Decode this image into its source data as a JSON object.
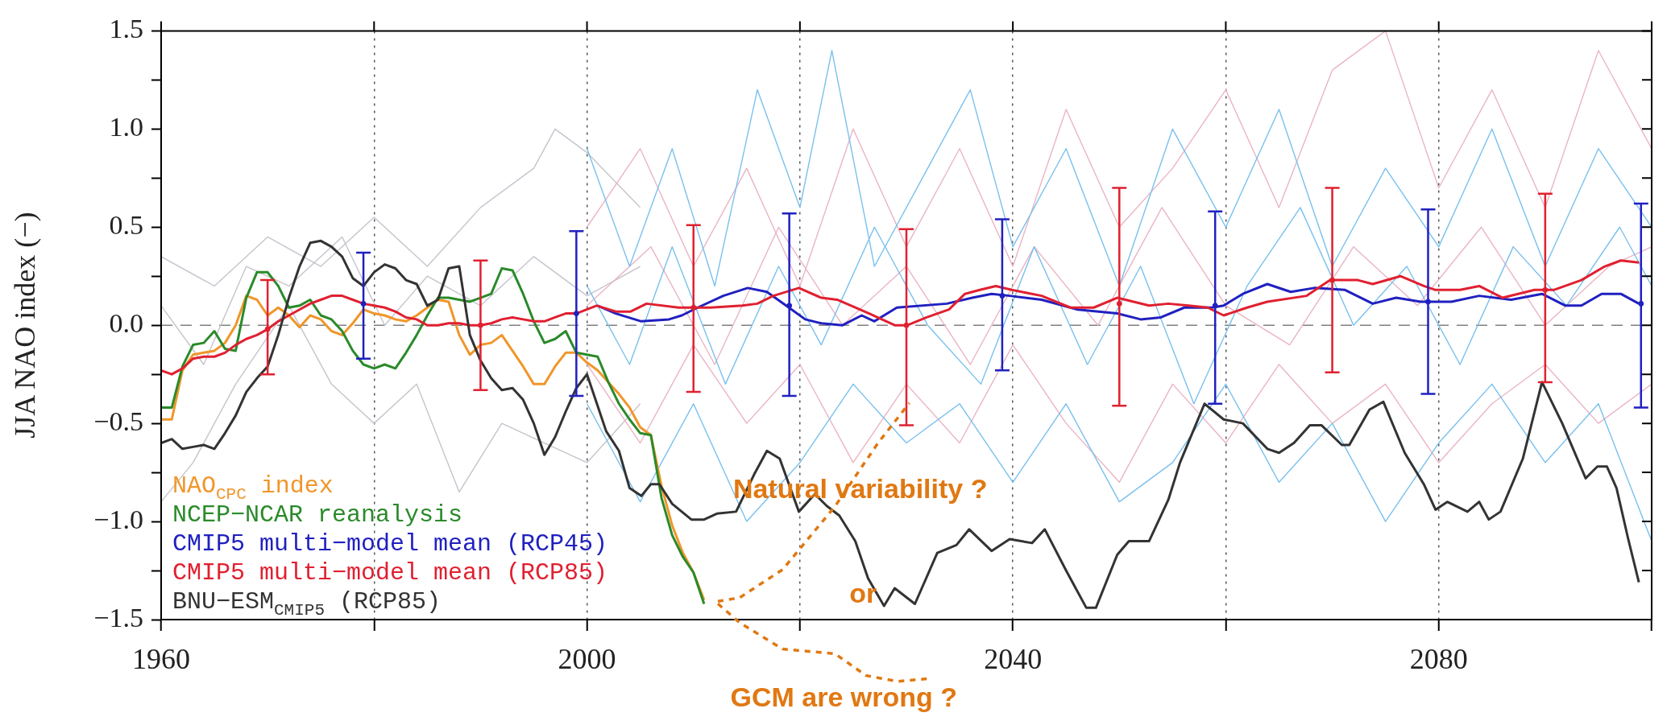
{
  "chart_data": {
    "type": "line",
    "ylabel": "JJA NAO index (−)",
    "xlim": [
      1960,
      2100
    ],
    "ylim": [
      -1.5,
      1.5
    ],
    "xticks": [
      1960,
      {
        "value": 1980,
        "label": null
      },
      2000,
      {
        "value": 2020,
        "label": null
      },
      2040,
      {
        "value": 2060,
        "label": null
      },
      2080,
      {
        "value": 2100,
        "label": null
      }
    ],
    "yticks": [
      {
        "value": -1.5,
        "label": "−1.5"
      },
      {
        "value": -1.25,
        "label": null
      },
      {
        "value": -1,
        "label": "−1.0"
      },
      {
        "value": -0.75,
        "label": null
      },
      {
        "value": -0.5,
        "label": "−0.5"
      },
      {
        "value": -0.25,
        "label": null
      },
      {
        "value": 0,
        "label": "0.0"
      },
      {
        "value": 0.25,
        "label": null
      },
      {
        "value": 0.5,
        "label": "0.5"
      },
      {
        "value": 0.75,
        "label": null
      },
      {
        "value": 1,
        "label": "1.0"
      },
      {
        "value": 1.25,
        "label": null
      },
      1.5
    ],
    "grid": "x",
    "legend": "bottom left",
    "marker": "none",
    "line_style": "solid",
    "ref_lines": [
      {
        "axis": "y",
        "value": 0,
        "color": "#808080",
        "line_style": "dashed"
      }
    ],
    "annotations": [
      "Natural variability ?",
      "or",
      "GCM are wrong ?"
    ],
    "series": [
      {
        "color": "#c4c4cc",
        "x": [
          1960,
          1965,
          1970,
          1975,
          1980,
          1985,
          1990,
          1995,
          1997,
          2000,
          2005
        ],
        "values": [
          0.35,
          0.2,
          0.45,
          0.3,
          0.55,
          0.3,
          0.6,
          0.8,
          1.0,
          0.88,
          0.6
        ]
      },
      {
        "color": "#c4c4cc",
        "x": [
          1960,
          1963,
          1967,
          1972,
          1976,
          1980,
          1984,
          1988,
          1992,
          1996,
          2000,
          2005
        ],
        "values": [
          -0.9,
          -0.7,
          -0.3,
          0.1,
          -0.3,
          -0.5,
          -0.3,
          -0.85,
          -0.5,
          -0.6,
          -0.7,
          -0.4
        ]
      },
      {
        "color": "#c4c4cc",
        "x": [
          1960,
          1964,
          1968,
          1972,
          1977,
          1981,
          1985,
          1990,
          1995,
          2000,
          2005
        ],
        "values": [
          0.1,
          -0.2,
          0.3,
          0.2,
          0.45,
          0,
          0.25,
          0.1,
          0.35,
          0.15,
          0.3
        ]
      },
      {
        "color": "#eab4c4",
        "x": [
          2000,
          2005,
          2010,
          2015,
          2020,
          2025,
          2030,
          2035,
          2040,
          2045,
          2050,
          2055,
          2060,
          2065,
          2070,
          2075,
          2080,
          2085,
          2090,
          2095,
          2100
        ],
        "values": [
          0.5,
          0.9,
          0.3,
          0.8,
          0.2,
          1.0,
          0.4,
          0.9,
          0.3,
          1.1,
          0.5,
          0.8,
          1.2,
          0.6,
          1.3,
          1.5,
          0.7,
          1.2,
          0.6,
          1.4,
          0.9
        ]
      },
      {
        "color": "#eab4c4",
        "x": [
          2000,
          2005,
          2010,
          2015,
          2020,
          2025,
          2030,
          2035,
          2040,
          2045,
          2050,
          2055,
          2060,
          2065,
          2070,
          2075,
          2080,
          2085,
          2090,
          2095,
          2100
        ],
        "values": [
          -0.2,
          -0.6,
          -0.1,
          -0.5,
          -0.2,
          -0.7,
          -0.3,
          -0.6,
          -0.1,
          -0.5,
          -0.8,
          -0.3,
          -0.6,
          -0.2,
          -0.5,
          -0.3,
          -0.7,
          -0.4,
          -0.2,
          -0.5,
          -0.3
        ]
      },
      {
        "color": "#eab4c4",
        "x": [
          2000,
          2006,
          2012,
          2018,
          2024,
          2030,
          2036,
          2042,
          2048,
          2054,
          2060,
          2066,
          2072,
          2078,
          2084,
          2090,
          2096,
          2100
        ],
        "values": [
          0.1,
          0.4,
          -0.2,
          0.5,
          0,
          0.3,
          -0.2,
          0.4,
          0,
          0.6,
          0.1,
          -0.1,
          0.4,
          0.1,
          0.5,
          0,
          0.3,
          0.4
        ]
      },
      {
        "color": "#79c0ee",
        "x": [
          2000,
          2004,
          2008,
          2012,
          2016,
          2020,
          2023,
          2027,
          2032,
          2036,
          2040,
          2045,
          2050,
          2055,
          2060,
          2065,
          2070,
          2075,
          2080,
          2085,
          2090,
          2095,
          2100
        ],
        "values": [
          0.9,
          0.3,
          0.9,
          0.2,
          1.2,
          0.6,
          1.4,
          0.3,
          0.8,
          1.2,
          0.4,
          0.9,
          0.2,
          1.0,
          0.5,
          1.1,
          0.3,
          0.8,
          0.4,
          1.0,
          0.3,
          0.9,
          0.5
        ]
      },
      {
        "color": "#79c0ee",
        "x": [
          2000,
          2005,
          2010,
          2015,
          2020,
          2025,
          2030,
          2035,
          2040,
          2045,
          2050,
          2055,
          2060,
          2065,
          2070,
          2075,
          2080,
          2085,
          2090,
          2095,
          2100
        ],
        "values": [
          -0.4,
          -0.9,
          -0.4,
          -1.0,
          -0.7,
          -0.3,
          -0.6,
          -0.4,
          -0.8,
          -0.4,
          -0.9,
          -0.7,
          -0.3,
          -0.8,
          -0.5,
          -1.0,
          -0.6,
          -0.3,
          -0.7,
          -0.4,
          -1.1
        ]
      },
      {
        "color": "#79c0ee",
        "x": [
          2000,
          2004,
          2008,
          2013,
          2018,
          2022,
          2027,
          2032,
          2037,
          2042,
          2047,
          2052,
          2057,
          2062,
          2067,
          2072,
          2077,
          2082,
          2087,
          2092,
          2097,
          2100
        ],
        "values": [
          0.2,
          -0.2,
          0.4,
          -0.3,
          0.3,
          -0.1,
          0.5,
          0,
          -0.3,
          0.4,
          -0.2,
          0.3,
          -0.4,
          0.2,
          0.6,
          0,
          0.3,
          -0.2,
          0.4,
          0.1,
          0.5,
          0.2
        ]
      },
      {
        "name": "NAO$_{CPC}$ index",
        "color": "#f0962a",
        "x": [
          1960,
          1961,
          1962,
          1963,
          1964,
          1965,
          1966,
          1967,
          1968,
          1969,
          1970,
          1971,
          1972,
          1973,
          1974,
          1975,
          1976,
          1977,
          1978,
          1979,
          1980,
          1981,
          1982,
          1983,
          1984,
          1985,
          1986,
          1987,
          1988,
          1989,
          1990,
          1991,
          1992,
          1993,
          1994,
          1995,
          1996,
          1997,
          1998,
          1999,
          2000,
          2001,
          2002,
          2003,
          2004,
          2005,
          2006,
          2007,
          2008,
          2009,
          2010,
          2011
        ],
        "values": [
          -0.48,
          -0.48,
          -0.23,
          -0.15,
          -0.14,
          -0.13,
          -0.09,
          0,
          0.15,
          0.13,
          0.05,
          0.09,
          0.05,
          -0.01,
          0.05,
          0.03,
          -0.03,
          -0.05,
          0.01,
          0.08,
          0.06,
          0.05,
          0.03,
          0.02,
          0.05,
          0.09,
          0.13,
          0.12,
          -0.05,
          -0.15,
          -0.1,
          -0.09,
          -0.05,
          -0.13,
          -0.21,
          -0.3,
          -0.3,
          -0.21,
          -0.14,
          -0.14,
          -0.19,
          -0.23,
          -0.29,
          -0.35,
          -0.42,
          -0.52,
          -0.56,
          -0.82,
          -1.02,
          -1.16,
          -1.26,
          -1.4
        ]
      },
      {
        "name": "NCEP−NCAR reanalysis",
        "color": "#2a8a2a",
        "x": [
          1960,
          1961,
          1962,
          1963,
          1964,
          1965,
          1966,
          1967,
          1968,
          1969,
          1970,
          1971,
          1972,
          1973,
          1974,
          1975,
          1976,
          1977,
          1978,
          1979,
          1980,
          1981,
          1982,
          1983,
          1984,
          1985,
          1986,
          1987,
          1988,
          1989,
          1990,
          1991,
          1992,
          1993,
          1994,
          1995,
          1996,
          1997,
          1998,
          1999,
          2000,
          2001,
          2002,
          2003,
          2004,
          2005,
          2006,
          2007,
          2008,
          2009,
          2010,
          2011
        ],
        "values": [
          -0.42,
          -0.42,
          -0.21,
          -0.1,
          -0.09,
          -0.03,
          -0.12,
          -0.13,
          0.14,
          0.27,
          0.27,
          0.2,
          0.09,
          0.1,
          0.13,
          0.05,
          0.03,
          -0.03,
          -0.13,
          -0.2,
          -0.22,
          -0.2,
          -0.22,
          -0.14,
          -0.05,
          0.05,
          0.14,
          0.14,
          0.13,
          0.12,
          0.14,
          0.16,
          0.29,
          0.28,
          0.16,
          0.02,
          -0.09,
          -0.07,
          -0.03,
          -0.14,
          -0.15,
          -0.16,
          -0.29,
          -0.4,
          -0.48,
          -0.55,
          -0.56,
          -0.88,
          -1.07,
          -1.18,
          -1.26,
          -1.42
        ]
      },
      {
        "name": "CMIP5 multi−model mean (RCP45)",
        "color": "#2020c0",
        "x": [
          2001,
          2002.7,
          2005.1,
          2007.7,
          2008.9,
          2010.4,
          2012.8,
          2015.1,
          2016.9,
          2018.7,
          2020.5,
          2022,
          2024,
          2025.8,
          2027,
          2029.1,
          2033.8,
          2036.2,
          2038,
          2039.7,
          2042.7,
          2046.1,
          2049.8,
          2052,
          2053.9,
          2056.1,
          2058.7,
          2059.8,
          2061.6,
          2063.9,
          2066.1,
          2068.3,
          2071.2,
          2073.8,
          2076,
          2078.3,
          2081.2,
          2083.8,
          2086.8,
          2089.7,
          2091.9,
          2093.4,
          2095.3,
          2097.1,
          2098.8
        ],
        "values": [
          0.1,
          0.06,
          0.02,
          0.03,
          0.05,
          0.09,
          0.15,
          0.19,
          0.17,
          0.1,
          0.03,
          0.01,
          0,
          0.05,
          0.02,
          0.09,
          0.11,
          0.14,
          0.16,
          0.15,
          0.13,
          0.08,
          0.06,
          0.03,
          0.04,
          0.09,
          0.09,
          0.1,
          0.16,
          0.21,
          0.17,
          0.19,
          0.18,
          0.11,
          0.14,
          0.12,
          0.12,
          0.15,
          0.13,
          0.16,
          0.1,
          0.1,
          0.16,
          0.16,
          0.11
        ]
      },
      {
        "name": "CMIP5 multi−model mean (RCP85)",
        "color": "#e02030",
        "x": [
          1960,
          1961,
          1962,
          1963,
          1964,
          1965,
          1966,
          1967,
          1968,
          1969,
          1970,
          1971,
          1972,
          1973,
          1974,
          1975,
          1976,
          1977,
          1978,
          1979,
          1980,
          1981,
          1982,
          1983,
          1984,
          1985,
          1986,
          1987,
          1988,
          1989,
          1990,
          1991,
          1992,
          1993,
          1994,
          1995,
          1996,
          1997,
          1998,
          1999,
          2000.9,
          2002.7,
          2004.1,
          2005.6,
          2008.6,
          2011.6,
          2014.6,
          2016,
          2017.5,
          2019.9,
          2022,
          2023.5,
          2026.5,
          2028.9,
          2030.1,
          2031.9,
          2034,
          2035.5,
          2036.9,
          2038.4,
          2039.9,
          2042.7,
          2045.4,
          2047.6,
          2049.8,
          2052.8,
          2054.6,
          2056.5,
          2058.3,
          2059.8,
          2062,
          2063.9,
          2067.6,
          2069.8,
          2072.4,
          2073.8,
          2076.4,
          2078.6,
          2079.7,
          2082,
          2083.8,
          2086,
          2089,
          2090.8,
          2093.4,
          2095.6,
          2097.1,
          2098.8
        ],
        "values": [
          -0.23,
          -0.25,
          -0.22,
          -0.17,
          -0.16,
          -0.16,
          -0.14,
          -0.1,
          -0.07,
          -0.05,
          -0.02,
          0.02,
          0.05,
          0.08,
          0.11,
          0.13,
          0.15,
          0.15,
          0.13,
          0.11,
          0.1,
          0.09,
          0.07,
          0.04,
          0.03,
          0,
          0,
          0.01,
          0.01,
          0,
          0,
          0.01,
          0.03,
          0.04,
          0.03,
          0.02,
          0.02,
          0.04,
          0.06,
          0.06,
          0.1,
          0.07,
          0.07,
          0.11,
          0.09,
          0.09,
          0.1,
          0.11,
          0.15,
          0.19,
          0.14,
          0.13,
          0.06,
          0,
          0,
          0.04,
          0.08,
          0.16,
          0.18,
          0.2,
          0.18,
          0.15,
          0.09,
          0.09,
          0.14,
          0.1,
          0.11,
          0.1,
          0.09,
          0.05,
          0.09,
          0.12,
          0.15,
          0.23,
          0.23,
          0.21,
          0.25,
          0.2,
          0.18,
          0.18,
          0.2,
          0.14,
          0.18,
          0.18,
          0.23,
          0.3,
          0.33,
          0.32
        ]
      },
      {
        "name": "BNU−ESM$_{CMIP5}$ (RCP85)",
        "color": "#333333",
        "x": [
          1960,
          1961,
          1962,
          1963,
          1964,
          1965,
          1966,
          1967,
          1968,
          1969,
          1970,
          1971,
          1972,
          1973,
          1974,
          1975,
          1976,
          1977,
          1978,
          1979,
          1980,
          1981,
          1982,
          1983,
          1984,
          1985,
          1986,
          1987,
          1988,
          1989,
          1990,
          1991,
          1992,
          1993,
          1994,
          1995,
          1996,
          1997,
          1998,
          1999,
          2000,
          2001.8,
          2003,
          2004,
          2005.1,
          2006,
          2006.8,
          2008,
          2009.8,
          2011,
          2012.2,
          2014,
          2015.7,
          2016.9,
          2018.1,
          2019.9,
          2021.4,
          2022.5,
          2023.7,
          2025.2,
          2026.4,
          2027.9,
          2028.9,
          2030.8,
          2032.9,
          2034.7,
          2035.9,
          2038,
          2039.7,
          2041.8,
          2043,
          2045,
          2046.9,
          2047.8,
          2049.8,
          2050.9,
          2052.8,
          2054.6,
          2055.7,
          2058,
          2059.8,
          2061.6,
          2063.9,
          2065,
          2066.4,
          2067.9,
          2069,
          2070.9,
          2071.6,
          2073.5,
          2074.8,
          2076.8,
          2078.6,
          2079.7,
          2080.8,
          2082.7,
          2083.8,
          2084.7,
          2085.8,
          2087.9,
          2089.7,
          2091.6,
          2093.8,
          2094.9,
          2095.8,
          2096.7,
          2097.8,
          2098.8
        ],
        "values": [
          -0.6,
          -0.58,
          -0.63,
          -0.62,
          -0.61,
          -0.63,
          -0.55,
          -0.46,
          -0.34,
          -0.27,
          -0.21,
          -0.05,
          0.14,
          0.3,
          0.42,
          0.43,
          0.4,
          0.35,
          0.24,
          0.2,
          0.27,
          0.31,
          0.29,
          0.23,
          0.21,
          0.1,
          0.13,
          0.29,
          0.3,
          -0.05,
          -0.18,
          -0.27,
          -0.33,
          -0.32,
          -0.38,
          -0.5,
          -0.66,
          -0.57,
          -0.44,
          -0.32,
          -0.25,
          -0.54,
          -0.64,
          -0.83,
          -0.87,
          -0.81,
          -0.81,
          -0.91,
          -0.99,
          -0.99,
          -0.96,
          -0.95,
          -0.76,
          -0.64,
          -0.68,
          -0.95,
          -0.86,
          -0.92,
          -0.97,
          -1.1,
          -1.29,
          -1.43,
          -1.34,
          -1.42,
          -1.16,
          -1.12,
          -1.04,
          -1.15,
          -1.09,
          -1.11,
          -1.04,
          -1.25,
          -1.44,
          -1.44,
          -1.17,
          -1.1,
          -1.1,
          -0.89,
          -0.7,
          -0.4,
          -0.48,
          -0.5,
          -0.63,
          -0.65,
          -0.6,
          -0.51,
          -0.51,
          -0.61,
          -0.61,
          -0.43,
          -0.39,
          -0.65,
          -0.81,
          -0.94,
          -0.9,
          -0.95,
          -0.9,
          -0.99,
          -0.95,
          -0.68,
          -0.29,
          -0.5,
          -0.78,
          -0.72,
          -0.72,
          -0.83,
          -1.09,
          -1.31
        ]
      },
      {
        "type": "scatter",
        "marker": "circle",
        "color": "#e02030",
        "x": [
          1970,
          1990,
          2010,
          2030,
          2050,
          2070,
          2090
        ],
        "values": [
          -0.02,
          0,
          0.09,
          0,
          0.11,
          0.23,
          0.18
        ],
        "errors": [
          [
            -0.25,
            0.23
          ],
          [
            -0.33,
            0.33
          ],
          [
            -0.34,
            0.51
          ],
          [
            -0.51,
            0.49
          ],
          [
            -0.41,
            0.7
          ],
          [
            -0.24,
            0.7
          ],
          [
            -0.29,
            0.67
          ]
        ]
      },
      {
        "type": "scatter",
        "marker": "circle",
        "color": "#2020c0",
        "x": [
          1979,
          1999,
          2019,
          2039,
          2059,
          2079,
          2099
        ],
        "values": [
          0.11,
          0.06,
          0.1,
          0.15,
          0.1,
          0.12,
          0.11
        ],
        "errors": [
          [
            -0.17,
            0.37
          ],
          [
            -0.36,
            0.48
          ],
          [
            -0.36,
            0.57
          ],
          [
            -0.23,
            0.54
          ],
          [
            -0.4,
            0.58
          ],
          [
            -0.35,
            0.59
          ],
          [
            -0.42,
            0.62
          ]
        ]
      }
    ]
  }
}
